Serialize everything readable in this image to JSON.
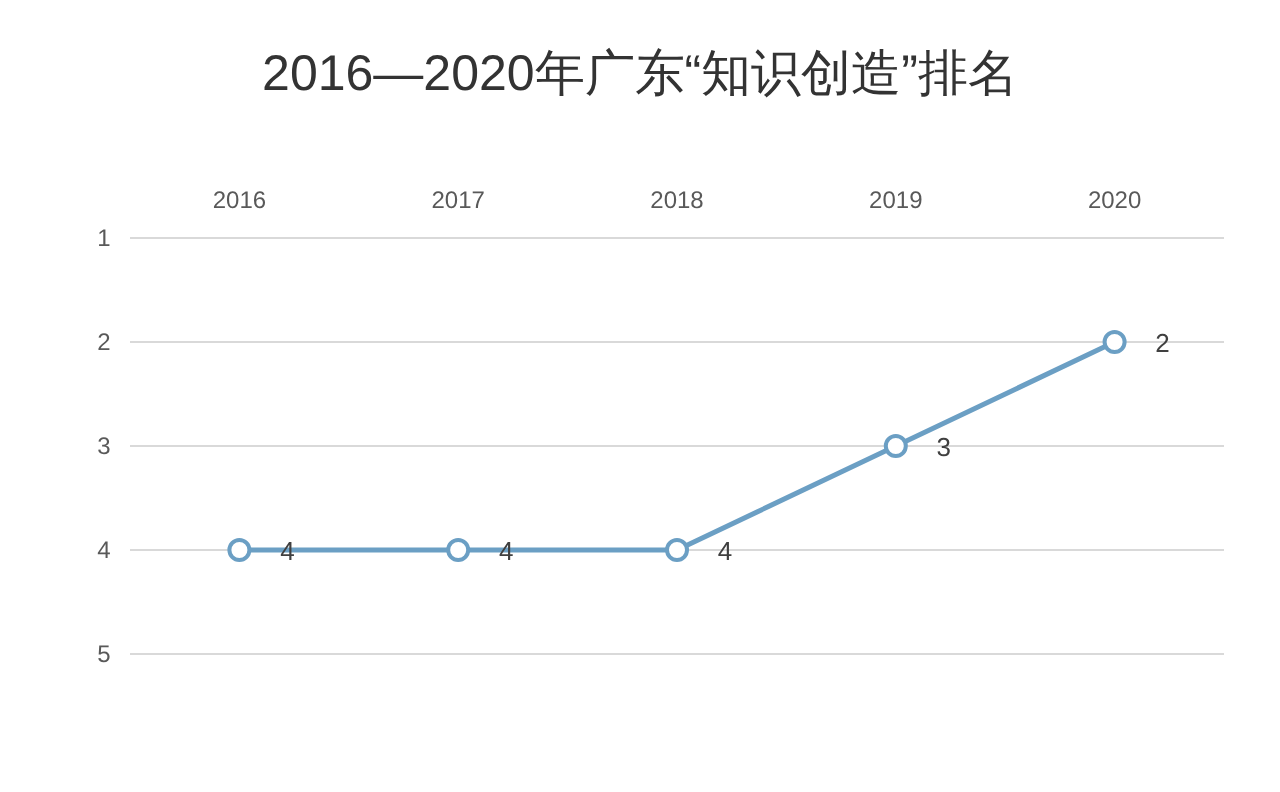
{
  "chart_data": {
    "type": "line",
    "title": "2016—2020年广东“知识创造”排名",
    "categories": [
      "2016",
      "2017",
      "2018",
      "2019",
      "2020"
    ],
    "series": [
      {
        "color": "#6b9fc4",
        "values": [
          4,
          4,
          4,
          3,
          2
        ]
      }
    ],
    "ylim": [
      5,
      1
    ],
    "yticks": [
      1,
      2,
      3,
      4,
      5
    ],
    "grid": "y",
    "marker": "circle",
    "line_style": "solid",
    "data_labels": true
  }
}
